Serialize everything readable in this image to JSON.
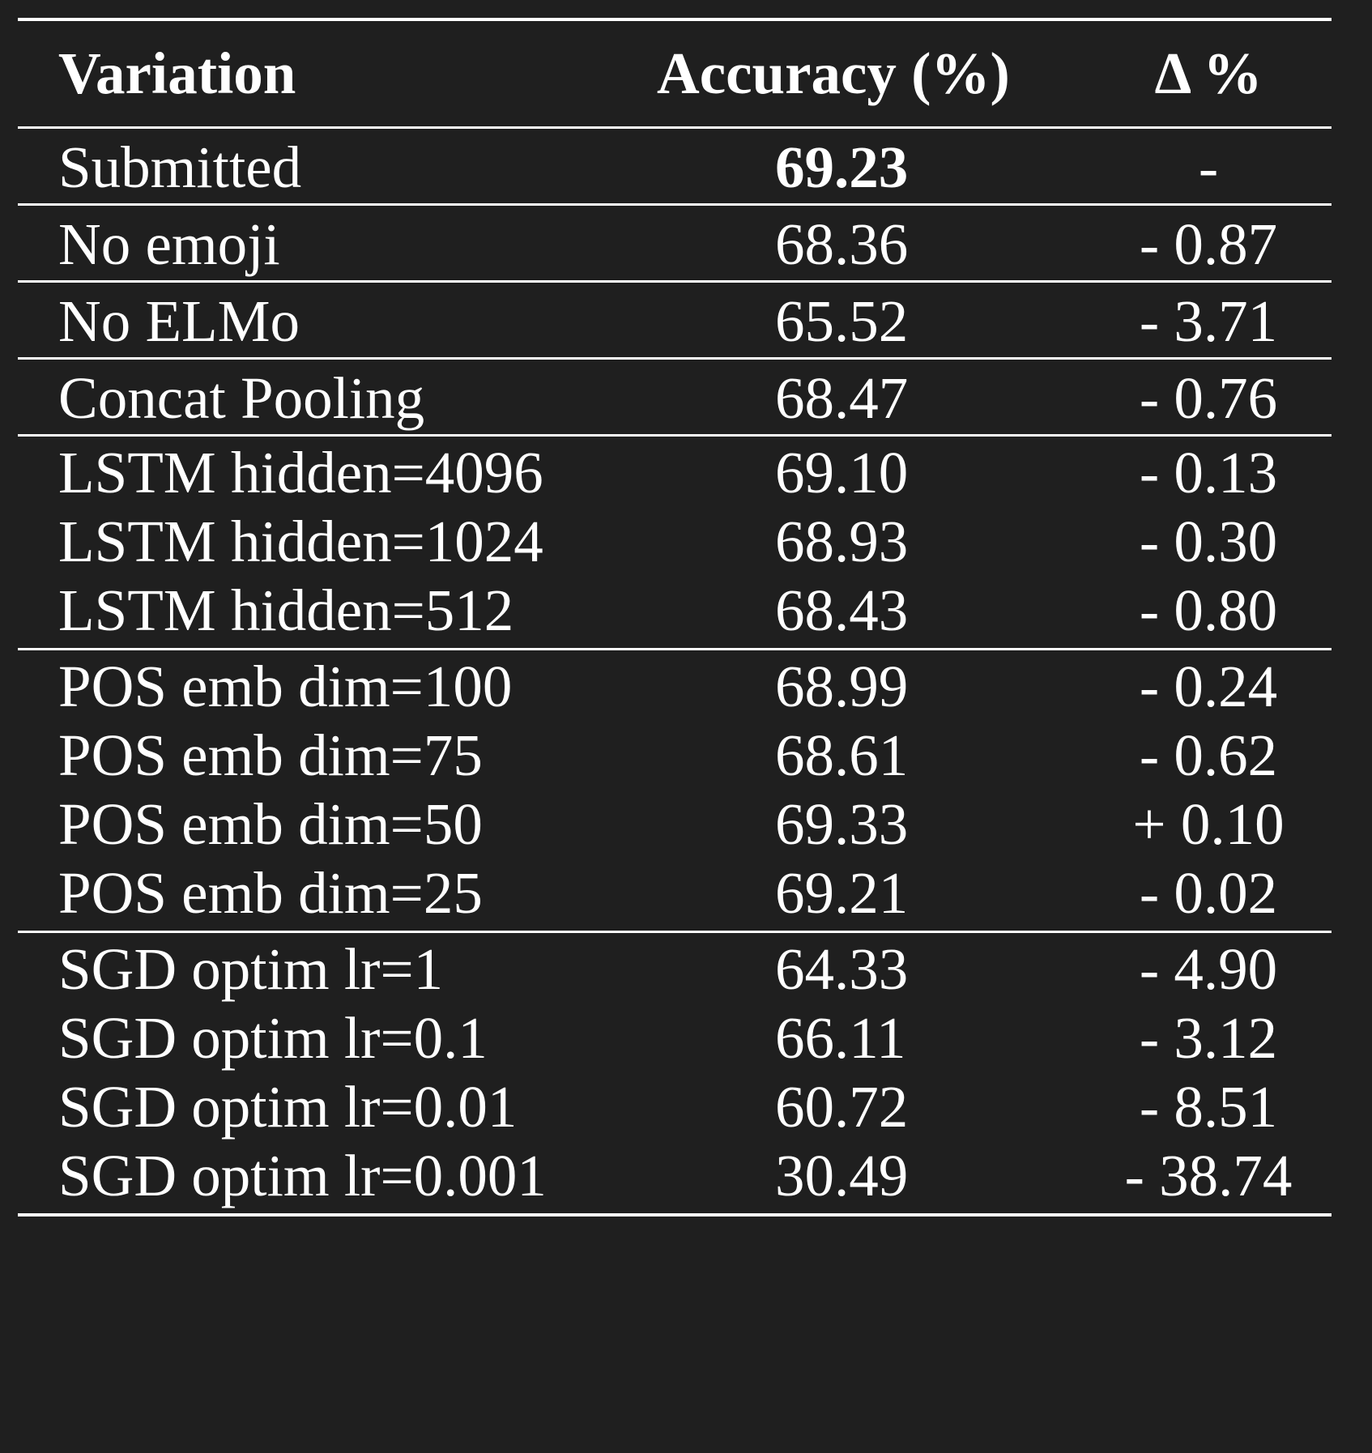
{
  "table": {
    "headers": {
      "variation": "Variation",
      "accuracy": "Accuracy (%)",
      "delta": "Δ %"
    },
    "groups": [
      [
        {
          "variation": "Submitted",
          "accuracy": "69.23",
          "delta": "-",
          "bold": true
        }
      ],
      [
        {
          "variation": "No emoji",
          "accuracy": "68.36",
          "delta": "- 0.87"
        }
      ],
      [
        {
          "variation": "No ELMo",
          "accuracy": "65.52",
          "delta": "- 3.71"
        }
      ],
      [
        {
          "variation": "Concat Pooling",
          "accuracy": "68.47",
          "delta": "- 0.76"
        }
      ],
      [
        {
          "variation": "LSTM hidden=4096",
          "accuracy": "69.10",
          "delta": "- 0.13"
        },
        {
          "variation": "LSTM hidden=1024",
          "accuracy": "68.93",
          "delta": "- 0.30"
        },
        {
          "variation": "LSTM hidden=512",
          "accuracy": "68.43",
          "delta": "- 0.80"
        }
      ],
      [
        {
          "variation": "POS emb dim=100",
          "accuracy": "68.99",
          "delta": "- 0.24"
        },
        {
          "variation": "POS emb dim=75",
          "accuracy": "68.61",
          "delta": "- 0.62"
        },
        {
          "variation": "POS emb dim=50",
          "accuracy": "69.33",
          "delta": "+ 0.10"
        },
        {
          "variation": "POS emb dim=25",
          "accuracy": "69.21",
          "delta": "- 0.02"
        }
      ],
      [
        {
          "variation": "SGD optim lr=1",
          "accuracy": "64.33",
          "delta": "- 4.90"
        },
        {
          "variation": "SGD optim lr=0.1",
          "accuracy": "66.11",
          "delta": "- 3.12"
        },
        {
          "variation": "SGD optim lr=0.01",
          "accuracy": "60.72",
          "delta": "- 8.51"
        },
        {
          "variation": "SGD optim lr=0.001",
          "accuracy": "30.49",
          "delta": "- 38.74"
        }
      ]
    ]
  }
}
